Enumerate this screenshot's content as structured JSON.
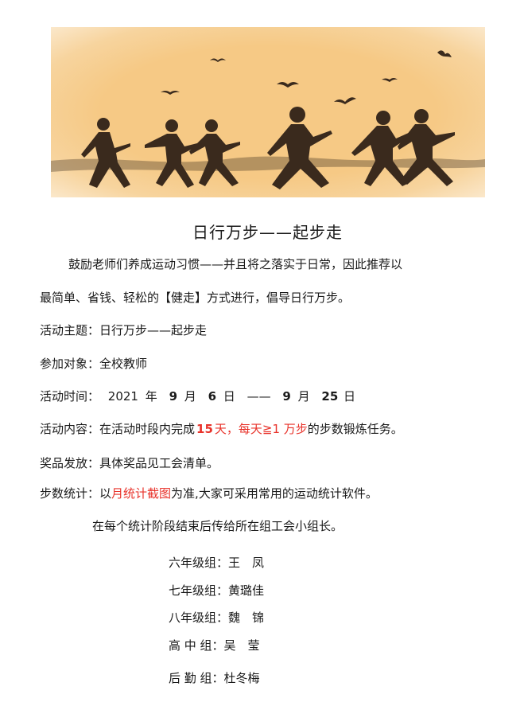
{
  "title": "日行万步——起步走",
  "intro": {
    "line1": "鼓励老师们养成运动习惯——并且将之落实于日常，因此推荐以",
    "line2": "最简单、省钱、轻松的【健走】方式进行，倡导日行万步。"
  },
  "theme": {
    "label": "活动主题：",
    "value": "日行万步——起步走"
  },
  "participants": {
    "label": "参加对象：",
    "value": "全校教师"
  },
  "time": {
    "label": "活动时间：",
    "year": "2021",
    "year_unit": "年",
    "start_month": "9",
    "month_unit": "月",
    "start_day": "6",
    "day_unit": "日",
    "dash": "——",
    "end_month": "9",
    "end_day": "25"
  },
  "content": {
    "label": "活动内容：",
    "pre": "在活动时段内完成",
    "days": "15",
    "days_unit": "天，每天≧1 万步",
    "post": "的步数锻炼任务。"
  },
  "prize": {
    "label": "奖品发放：",
    "value": "具体奖品见工会清单。"
  },
  "stats": {
    "label": "步数统计：",
    "pre": "以",
    "highlight": "月统计截图",
    "post": "为准,大家可采用常用的运动统计软件。",
    "note": "在每个统计阶段结束后传给所在组工会小组长。"
  },
  "groups": [
    {
      "name": "六年级组：",
      "leader": "王　凤"
    },
    {
      "name": "七年级组：",
      "leader": "黄璐佳"
    },
    {
      "name": "八年级组：",
      "leader": "魏　锦"
    },
    {
      "name": "高 中 组：",
      "leader": "吴　莹"
    },
    {
      "name": "后 勤 组：",
      "leader": "杜冬梅"
    }
  ],
  "colors": {
    "banner": "#f6c985",
    "highlight": "#e8322a"
  }
}
